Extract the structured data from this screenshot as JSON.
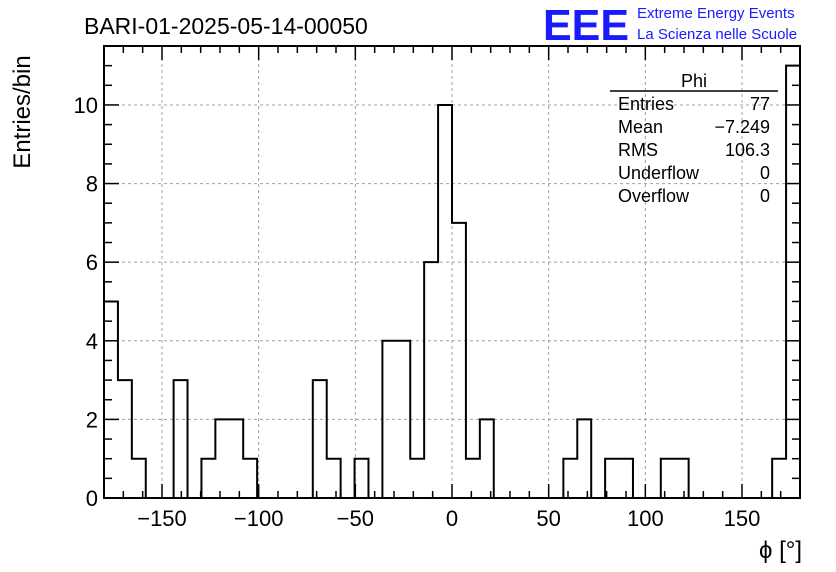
{
  "chart_data": {
    "type": "bar",
    "title": "BARI-01-2025-05-14-00050",
    "xlabel": "ϕ [°]",
    "ylabel": "Entries/bin",
    "xlim": [
      -180,
      180
    ],
    "ylim": [
      0,
      11.5
    ],
    "xticks": [
      -150,
      -100,
      -50,
      0,
      50,
      100,
      150
    ],
    "xtick_labels": [
      "−150",
      "−100",
      "−50",
      "0",
      "50",
      "100",
      "150"
    ],
    "yticks": [
      0,
      2,
      4,
      6,
      8,
      10
    ],
    "yticks_labels": [
      "0",
      "2",
      "4",
      "6",
      "8",
      "10"
    ],
    "grid": true,
    "bin_edges": [
      -180,
      -172.8,
      -165.6,
      -158.4,
      -151.2,
      -144,
      -136.8,
      -129.6,
      -122.4,
      -115.2,
      -108,
      -100.8,
      -93.6,
      -86.4,
      -79.2,
      -72,
      -64.8,
      -57.6,
      -50.4,
      -43.2,
      -36,
      -28.8,
      -21.6,
      -14.4,
      -7.2,
      0,
      7.2,
      14.4,
      21.6,
      28.8,
      36,
      43.2,
      50.4,
      57.6,
      64.8,
      72,
      79.2,
      86.4,
      93.6,
      100.8,
      108,
      115.2,
      122.4,
      129.6,
      136.8,
      144,
      151.2,
      158.4,
      165.6,
      172.8,
      180
    ],
    "values": [
      5,
      3,
      1,
      0,
      0,
      3,
      0,
      1,
      2,
      2,
      1,
      0,
      0,
      0,
      0,
      3,
      1,
      0,
      1,
      0,
      4,
      4,
      1,
      6,
      10,
      7,
      1,
      2,
      0,
      0,
      0,
      0,
      0,
      1,
      2,
      0,
      1,
      1,
      0,
      0,
      1,
      1,
      0,
      0,
      0,
      0,
      0,
      0,
      1,
      11
    ],
    "stats_box": {
      "title": "Phi",
      "rows": [
        {
          "label": "Entries",
          "value": "77"
        },
        {
          "label": "Mean",
          "value": "−7.249"
        },
        {
          "label": "RMS",
          "value": "106.3"
        },
        {
          "label": "Underflow",
          "value": "0"
        },
        {
          "label": "Overflow",
          "value": "0"
        }
      ]
    },
    "line_color": "#000000"
  },
  "logo": {
    "mark": "EEE",
    "line1": "Extreme Energy Events",
    "line2": "La Scienza nelle Scuole",
    "color": "#1a1aff"
  }
}
